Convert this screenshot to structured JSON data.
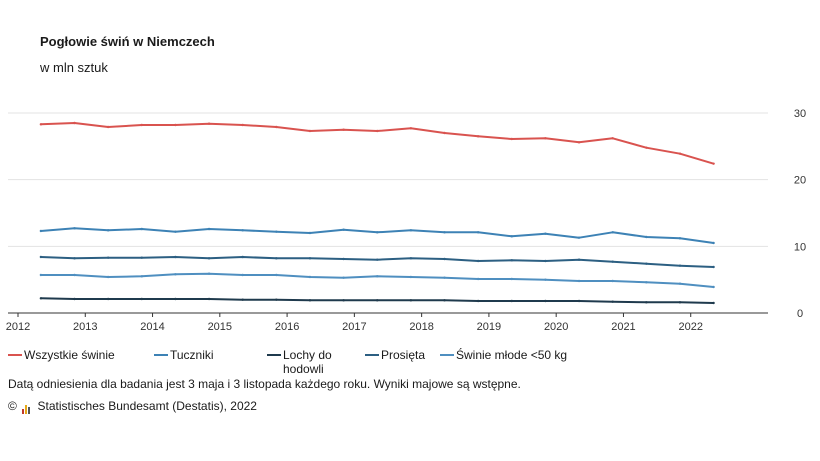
{
  "chart_data": {
    "type": "line",
    "title": "Pogłowie świń w Niemczech",
    "subtitle": "w mln sztuk",
    "xlabel": "",
    "ylabel": "",
    "xlim": [
      2012,
      2023
    ],
    "ylim": [
      0,
      30
    ],
    "x_ticks": [
      "2012",
      "2013",
      "2014",
      "2015",
      "2016",
      "2017",
      "2018",
      "2019",
      "2020",
      "2021",
      "2022"
    ],
    "y_ticks": [
      "0",
      "10",
      "20",
      "30"
    ],
    "x": [
      2012.34,
      2012.84,
      2013.34,
      2013.84,
      2014.34,
      2014.84,
      2015.34,
      2015.84,
      2016.34,
      2016.84,
      2017.34,
      2017.84,
      2018.34,
      2018.84,
      2019.34,
      2019.84,
      2020.34,
      2020.84,
      2021.34,
      2021.84,
      2022.34
    ],
    "series": [
      {
        "name": "Wszystkie świnie",
        "color": "#d9534f",
        "values": [
          28.3,
          28.5,
          27.9,
          28.2,
          28.2,
          28.4,
          28.2,
          27.9,
          27.3,
          27.5,
          27.3,
          27.7,
          27.0,
          26.5,
          26.1,
          26.2,
          25.6,
          26.2,
          24.8,
          23.9,
          22.4
        ]
      },
      {
        "name": "Tuczniki",
        "color": "#3d82b5",
        "values": [
          12.3,
          12.7,
          12.4,
          12.6,
          12.2,
          12.6,
          12.4,
          12.2,
          12.0,
          12.5,
          12.1,
          12.4,
          12.1,
          12.1,
          11.5,
          11.9,
          11.3,
          12.1,
          11.4,
          11.2,
          10.5
        ]
      },
      {
        "name": "Lochy do hodowli",
        "color": "#1f3a4d",
        "values": [
          2.2,
          2.1,
          2.1,
          2.1,
          2.1,
          2.1,
          2.0,
          2.0,
          1.9,
          1.9,
          1.9,
          1.9,
          1.9,
          1.8,
          1.8,
          1.8,
          1.8,
          1.7,
          1.6,
          1.6,
          1.5
        ]
      },
      {
        "name": "Prosięta",
        "color": "#2c5f82",
        "values": [
          8.4,
          8.2,
          8.3,
          8.3,
          8.4,
          8.2,
          8.4,
          8.2,
          8.2,
          8.1,
          8.0,
          8.2,
          8.1,
          7.8,
          7.9,
          7.8,
          8.0,
          7.7,
          7.4,
          7.1,
          6.9
        ]
      },
      {
        "name": "Świnie młode <50 kg",
        "color": "#4f8fc0",
        "values": [
          5.7,
          5.7,
          5.4,
          5.5,
          5.8,
          5.9,
          5.7,
          5.7,
          5.4,
          5.3,
          5.5,
          5.4,
          5.3,
          5.1,
          5.1,
          5.0,
          4.8,
          4.8,
          4.6,
          4.4,
          3.9
        ]
      }
    ]
  },
  "legend": {
    "items": [
      {
        "label_line1": "Wszystkie świnie",
        "label_line2": ""
      },
      {
        "label_line1": "Tuczniki",
        "label_line2": ""
      },
      {
        "label_line1": "Lochy do",
        "label_line2": "hodowli"
      },
      {
        "label_line1": "Prosięta",
        "label_line2": ""
      },
      {
        "label_line1": "Świnie młode <50 kg",
        "label_line2": ""
      }
    ]
  },
  "footer": {
    "note": "Datą odniesienia dla badania jest 3 maja i 3 listopada każdego roku. Wyniki majowe są wstępne.",
    "copyright": "©",
    "source": "Statistisches Bundesamt (Destatis), 2022"
  }
}
